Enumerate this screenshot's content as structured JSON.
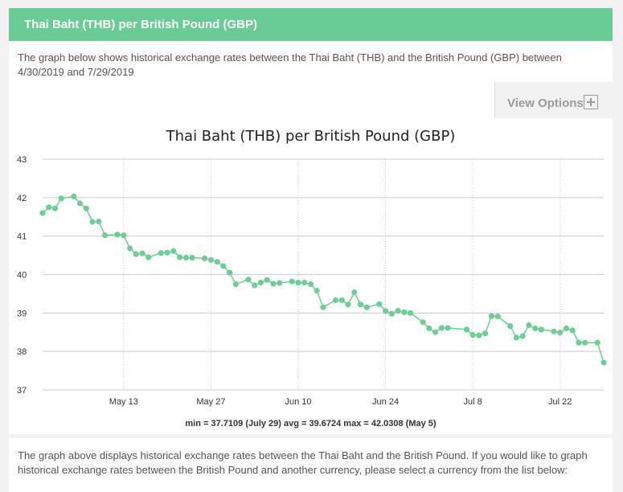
{
  "header": {
    "title": "Thai Baht (THB) per British Pound (GBP)"
  },
  "description": "The graph below shows historical exchange rates between the Thai Baht (THB) and the British Pound (GBP) between 4/30/2019 and 7/29/2019",
  "view_options": {
    "label": "View Options",
    "icon": "plus-icon"
  },
  "stats": "min = 37.7109 (July 29) avg = 39.6724 max = 42.0308 (May 5)",
  "footer": {
    "text": "The graph above displays historical exchange rates between the Thai Baht and the British Pound. If you would like to graph historical exchange rates between the British Pound and another currency, please select a currency from the list below:"
  },
  "colors": {
    "accent": "#69cb95",
    "line": "#6dcf94",
    "grid": "#cccccc"
  },
  "chart_data": {
    "type": "line",
    "title": "Thai Baht (THB) per British Pound (GBP)",
    "xlabel": "",
    "ylabel": "",
    "ylim": [
      37,
      43
    ],
    "yticks": [
      37,
      38,
      39,
      40,
      41,
      42,
      43
    ],
    "xlim": [
      "2019-04-30",
      "2019-07-29"
    ],
    "xticks": [
      {
        "label": "May 13",
        "date": "2019-05-13"
      },
      {
        "label": "May 27",
        "date": "2019-05-27"
      },
      {
        "label": "Jun 10",
        "date": "2019-06-10"
      },
      {
        "label": "Jun 24",
        "date": "2019-06-24"
      },
      {
        "label": "Jul 8",
        "date": "2019-07-08"
      },
      {
        "label": "Jul 22",
        "date": "2019-07-22"
      }
    ],
    "grid": true,
    "series": [
      {
        "x": [
          "2019-04-30",
          "2019-05-01",
          "2019-05-02",
          "2019-05-03",
          "2019-05-05",
          "2019-05-06",
          "2019-05-07",
          "2019-05-08",
          "2019-05-09",
          "2019-05-10",
          "2019-05-12",
          "2019-05-13",
          "2019-05-14",
          "2019-05-15",
          "2019-05-16",
          "2019-05-17",
          "2019-05-19",
          "2019-05-20",
          "2019-05-21",
          "2019-05-22",
          "2019-05-23",
          "2019-05-24",
          "2019-05-26",
          "2019-05-27",
          "2019-05-28",
          "2019-05-29",
          "2019-05-30",
          "2019-05-31",
          "2019-06-02",
          "2019-06-03",
          "2019-06-04",
          "2019-06-05",
          "2019-06-06",
          "2019-06-07",
          "2019-06-09",
          "2019-06-10",
          "2019-06-11",
          "2019-06-12",
          "2019-06-13",
          "2019-06-14",
          "2019-06-16",
          "2019-06-17",
          "2019-06-18",
          "2019-06-19",
          "2019-06-20",
          "2019-06-21",
          "2019-06-23",
          "2019-06-24",
          "2019-06-25",
          "2019-06-26",
          "2019-06-27",
          "2019-06-28",
          "2019-06-30",
          "2019-07-01",
          "2019-07-02",
          "2019-07-03",
          "2019-07-04",
          "2019-07-07",
          "2019-07-08",
          "2019-07-09",
          "2019-07-10",
          "2019-07-11",
          "2019-07-12",
          "2019-07-14",
          "2019-07-15",
          "2019-07-16",
          "2019-07-17",
          "2019-07-18",
          "2019-07-19",
          "2019-07-21",
          "2019-07-22",
          "2019-07-23",
          "2019-07-24",
          "2019-07-25",
          "2019-07-26",
          "2019-07-28",
          "2019-07-29"
        ],
        "values": [
          41.6,
          41.75,
          41.72,
          41.98,
          42.03,
          41.85,
          41.72,
          41.37,
          41.38,
          41.02,
          41.04,
          41.02,
          40.68,
          40.53,
          40.55,
          40.45,
          40.56,
          40.57,
          40.61,
          40.45,
          40.44,
          40.44,
          40.42,
          40.38,
          40.33,
          40.22,
          40.05,
          39.75,
          39.87,
          39.72,
          39.79,
          39.86,
          39.76,
          39.78,
          39.82,
          39.79,
          39.79,
          39.75,
          39.58,
          39.15,
          39.33,
          39.33,
          39.22,
          39.54,
          39.22,
          39.15,
          39.23,
          39.05,
          38.98,
          39.06,
          39.02,
          39.0,
          38.76,
          38.6,
          38.5,
          38.61,
          38.61,
          38.57,
          38.43,
          38.42,
          38.47,
          38.92,
          38.91,
          38.66,
          38.36,
          38.4,
          38.68,
          38.6,
          38.57,
          38.52,
          38.49,
          38.6,
          38.55,
          38.23,
          38.23,
          38.23,
          37.71
        ]
      }
    ]
  }
}
